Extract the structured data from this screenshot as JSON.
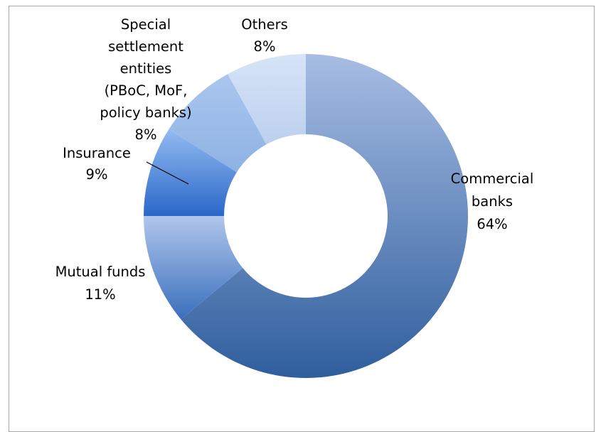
{
  "chart_data": {
    "type": "pie",
    "donut": true,
    "title": "",
    "categories": [
      "Commercial banks",
      "Mutual funds",
      "Insurance",
      "Special settlement entities (PBoC, MoF, policy banks)",
      "Others"
    ],
    "values": [
      64,
      11,
      9,
      8,
      8
    ],
    "labels": [
      {
        "lines": [
          "Commercial",
          "banks",
          "64%"
        ]
      },
      {
        "lines": [
          "Mutual funds",
          "11%"
        ]
      },
      {
        "lines": [
          "Insurance",
          "9%"
        ]
      },
      {
        "lines": [
          "Special",
          "settlement",
          "entities",
          "(PBoC, MoF,",
          "policy banks)",
          "8%"
        ]
      },
      {
        "lines": [
          "Others",
          "8%"
        ]
      }
    ],
    "colors": [
      [
        "#2f5e9d",
        "#a7bde3"
      ],
      [
        "#3a6fbd",
        "#b0c6ec"
      ],
      [
        "#2a67c9",
        "#93bbf0"
      ],
      [
        "#8eb2e4",
        "#aac6ee"
      ],
      [
        "#bcd0ee",
        "#d6e4f7"
      ]
    ],
    "legend": "none",
    "grid": false
  }
}
